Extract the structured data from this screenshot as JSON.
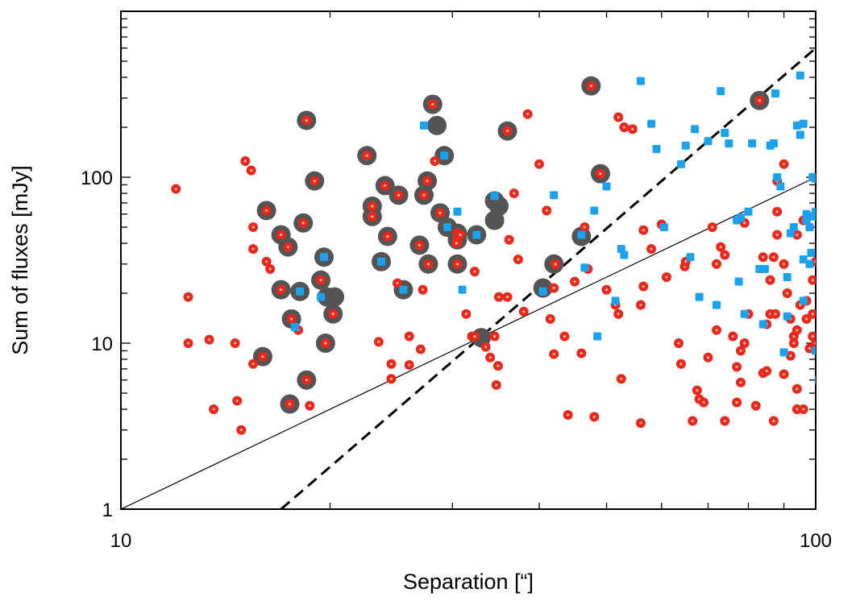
{
  "chart_data": {
    "type": "scatter",
    "xscale": "log",
    "yscale": "log",
    "xlim": [
      10,
      100
    ],
    "ylim": [
      1,
      1000
    ],
    "xlabel": "Separation [“]",
    "ylabel": "Sum of fluxes [mJy]",
    "x_tick_labels": [
      {
        "value": 10,
        "label": "10"
      },
      {
        "value": 100,
        "label": "100"
      }
    ],
    "y_tick_labels": [
      {
        "value": 1,
        "label": "1"
      },
      {
        "value": 10,
        "label": "10"
      },
      {
        "value": 100,
        "label": "100"
      }
    ],
    "colors": {
      "red": "#e8281a",
      "blue": "#1aa3ec",
      "ring": "#545454",
      "solid_line": "#000000",
      "dashed_line": "#000000"
    },
    "lines": [
      {
        "name": "solid-line",
        "style": "solid",
        "x": [
          10,
          100
        ],
        "y": [
          1,
          100
        ]
      },
      {
        "name": "dashed-line",
        "style": "dashed",
        "x": [
          17,
          100
        ],
        "y": [
          1,
          600
        ]
      }
    ],
    "series": [
      {
        "name": "circled-sources",
        "marker": "dark-ring",
        "points": [
          [
            18.5,
            220
          ],
          [
            28.1,
            275
          ],
          [
            28.5,
            205
          ],
          [
            47.5,
            355
          ],
          [
            83,
            290
          ],
          [
            16.2,
            63
          ],
          [
            17,
            45
          ],
          [
            17.4,
            38
          ],
          [
            18.3,
            53
          ],
          [
            19,
            95
          ],
          [
            19.6,
            33
          ],
          [
            19.4,
            24
          ],
          [
            19.8,
            19
          ],
          [
            20.3,
            19
          ],
          [
            20.2,
            15
          ],
          [
            17,
            21
          ],
          [
            17.6,
            14
          ],
          [
            18.1,
            20.5
          ],
          [
            19.7,
            10
          ],
          [
            16,
            8.3
          ],
          [
            17.5,
            4.3
          ],
          [
            18.5,
            6
          ],
          [
            22.6,
            135
          ],
          [
            23,
            67
          ],
          [
            23,
            58
          ],
          [
            24,
            89
          ],
          [
            24.2,
            44
          ],
          [
            25.1,
            78
          ],
          [
            23.7,
            31
          ],
          [
            25.5,
            21
          ],
          [
            27.3,
            78
          ],
          [
            27.6,
            95
          ],
          [
            26.9,
            39
          ],
          [
            27.7,
            30
          ],
          [
            28.8,
            61
          ],
          [
            29.5,
            50
          ],
          [
            30.5,
            46
          ],
          [
            30.5,
            30
          ],
          [
            30.5,
            42
          ],
          [
            32.5,
            45
          ],
          [
            34.5,
            72
          ],
          [
            35,
            67
          ],
          [
            34.5,
            55
          ],
          [
            36,
            190
          ],
          [
            42,
            30
          ],
          [
            40.5,
            21.5
          ],
          [
            46,
            44
          ],
          [
            49,
            105
          ],
          [
            33,
            10.8
          ],
          [
            29.2,
            135
          ]
        ]
      },
      {
        "name": "red-sources",
        "marker": "red-dot",
        "points": [
          [
            12,
            85
          ],
          [
            12.5,
            19
          ],
          [
            12.5,
            10
          ],
          [
            13.4,
            10.5
          ],
          [
            13.6,
            4
          ],
          [
            14.6,
            10
          ],
          [
            14.7,
            4.5
          ],
          [
            14.9,
            3
          ],
          [
            15.1,
            125
          ],
          [
            15.4,
            110
          ],
          [
            15.5,
            50
          ],
          [
            15.5,
            37
          ],
          [
            15.5,
            7.5
          ],
          [
            16.2,
            31
          ],
          [
            16.4,
            28
          ],
          [
            18,
            12
          ],
          [
            18.7,
            4.2
          ],
          [
            19,
            95
          ],
          [
            16.2,
            63
          ],
          [
            17,
            45
          ],
          [
            17.4,
            38
          ],
          [
            18.3,
            53
          ],
          [
            19.4,
            24
          ],
          [
            20.2,
            15
          ],
          [
            17,
            21
          ],
          [
            17.6,
            14
          ],
          [
            19.7,
            10
          ],
          [
            16,
            8.3
          ],
          [
            17.5,
            4.3
          ],
          [
            18.5,
            6
          ],
          [
            18.5,
            220
          ],
          [
            23.5,
            10.2
          ],
          [
            24.2,
            44
          ],
          [
            24.5,
            7.5
          ],
          [
            24.5,
            6.1
          ],
          [
            25,
            23
          ],
          [
            26,
            11
          ],
          [
            26,
            7.4
          ],
          [
            27,
            9.2
          ],
          [
            27.2,
            21
          ],
          [
            28.1,
            275
          ],
          [
            28.3,
            125
          ],
          [
            22.6,
            135
          ],
          [
            23,
            67
          ],
          [
            23,
            58
          ],
          [
            24,
            89
          ],
          [
            25.1,
            78
          ],
          [
            27.3,
            78
          ],
          [
            27.6,
            95
          ],
          [
            26.9,
            39
          ],
          [
            27.7,
            30
          ],
          [
            28.8,
            61
          ],
          [
            30.5,
            46
          ],
          [
            30.5,
            30
          ],
          [
            30.5,
            42
          ],
          [
            30.4,
            40
          ],
          [
            30.8,
            45
          ],
          [
            31.4,
            15
          ],
          [
            32,
            11
          ],
          [
            32.3,
            11
          ],
          [
            32.3,
            27
          ],
          [
            33.5,
            9.5
          ],
          [
            34,
            8.2
          ],
          [
            34.5,
            11
          ],
          [
            34.9,
            7.3
          ],
          [
            35,
            19
          ],
          [
            34.7,
            5.6
          ],
          [
            36,
            19
          ],
          [
            36.2,
            42
          ],
          [
            36.8,
            80
          ],
          [
            37.3,
            32
          ],
          [
            38,
            15.5
          ],
          [
            36,
            190
          ],
          [
            38.5,
            240
          ],
          [
            40,
            120
          ],
          [
            41,
            63
          ],
          [
            41.5,
            14
          ],
          [
            42,
            8.6
          ],
          [
            42.2,
            30
          ],
          [
            42,
            21.5
          ],
          [
            43.5,
            11
          ],
          [
            44,
            3.7
          ],
          [
            45,
            23.5
          ],
          [
            46,
            8.7
          ],
          [
            46.5,
            50
          ],
          [
            47,
            28
          ],
          [
            47.5,
            355
          ],
          [
            49,
            105
          ],
          [
            48,
            3.6
          ],
          [
            50,
            21
          ],
          [
            51.5,
            17
          ],
          [
            52,
            15
          ],
          [
            52,
            230
          ],
          [
            52.5,
            6.1
          ],
          [
            53,
            200
          ],
          [
            54.5,
            195
          ],
          [
            56,
            3.3
          ],
          [
            56,
            17
          ],
          [
            56.5,
            48
          ],
          [
            56.5,
            22
          ],
          [
            58,
            37
          ],
          [
            60,
            52
          ],
          [
            61,
            25
          ],
          [
            63.5,
            10
          ],
          [
            64,
            7.5
          ],
          [
            64.8,
            29
          ],
          [
            65,
            31
          ],
          [
            66.5,
            3.4
          ],
          [
            67.5,
            5.2
          ],
          [
            68,
            4.6
          ],
          [
            69,
            4.4
          ],
          [
            70,
            8.2
          ],
          [
            71,
            50
          ],
          [
            72,
            12
          ],
          [
            72,
            30
          ],
          [
            73,
            38
          ],
          [
            74,
            34
          ],
          [
            74,
            3.4
          ],
          [
            76,
            11
          ],
          [
            77,
            7.2
          ],
          [
            77,
            4.4
          ],
          [
            78,
            9
          ],
          [
            78,
            5.8
          ],
          [
            79,
            10
          ],
          [
            79,
            53
          ],
          [
            80,
            15
          ],
          [
            82,
            4.2
          ],
          [
            83,
            290
          ],
          [
            84,
            6.6
          ],
          [
            84,
            33
          ],
          [
            85,
            13
          ],
          [
            85,
            6.8
          ],
          [
            86,
            15
          ],
          [
            86,
            24
          ],
          [
            87,
            3.4
          ],
          [
            87,
            33
          ],
          [
            87.5,
            15
          ],
          [
            88,
            95
          ],
          [
            88,
            45
          ],
          [
            88,
            62
          ],
          [
            90,
            120
          ],
          [
            90,
            30
          ],
          [
            90,
            6.5
          ],
          [
            91,
            20
          ],
          [
            92,
            14
          ],
          [
            92,
            8.4
          ],
          [
            93,
            11
          ],
          [
            93,
            10
          ],
          [
            94,
            12
          ],
          [
            94,
            45
          ],
          [
            94,
            5.3
          ],
          [
            94,
            4
          ],
          [
            95,
            17
          ],
          [
            96,
            4
          ],
          [
            96,
            55
          ],
          [
            97,
            18
          ],
          [
            97,
            14
          ],
          [
            98,
            9.3
          ],
          [
            99,
            24
          ],
          [
            99,
            15
          ],
          [
            99,
            11
          ],
          [
            100,
            31
          ],
          [
            100,
            10
          ],
          [
            100,
            60
          ]
        ]
      },
      {
        "name": "blue-sources",
        "marker": "blue-square",
        "points": [
          [
            27.3,
            205
          ],
          [
            29.2,
            135
          ],
          [
            23.7,
            31
          ],
          [
            25.5,
            21
          ],
          [
            19.6,
            33
          ],
          [
            18.1,
            20.5
          ],
          [
            19.4,
            19
          ],
          [
            17.8,
            12.5
          ],
          [
            29.5,
            50
          ],
          [
            30.5,
            62
          ],
          [
            31,
            21
          ],
          [
            32.5,
            45
          ],
          [
            34.5,
            77
          ],
          [
            40.5,
            20.5
          ],
          [
            42,
            78
          ],
          [
            46,
            45
          ],
          [
            46.5,
            28.5
          ],
          [
            48,
            63
          ],
          [
            48.5,
            11
          ],
          [
            50,
            88
          ],
          [
            51.5,
            18
          ],
          [
            52.5,
            37
          ],
          [
            53,
            34
          ],
          [
            56,
            380
          ],
          [
            58,
            210
          ],
          [
            59,
            148
          ],
          [
            60.5,
            50
          ],
          [
            64,
            120
          ],
          [
            65,
            155
          ],
          [
            66,
            33
          ],
          [
            67,
            195
          ],
          [
            68,
            19
          ],
          [
            70,
            165
          ],
          [
            72,
            17
          ],
          [
            73,
            330
          ],
          [
            74,
            185
          ],
          [
            75,
            160
          ],
          [
            77,
            55
          ],
          [
            77.5,
            23.5
          ],
          [
            78,
            57
          ],
          [
            79,
            15
          ],
          [
            80,
            62
          ],
          [
            81,
            160
          ],
          [
            83,
            28
          ],
          [
            84,
            13
          ],
          [
            84.5,
            28
          ],
          [
            86,
            155
          ],
          [
            87,
            160
          ],
          [
            87.5,
            320
          ],
          [
            88,
            100
          ],
          [
            89,
            88
          ],
          [
            90,
            8.8
          ],
          [
            91,
            25
          ],
          [
            91,
            14.5
          ],
          [
            92,
            46
          ],
          [
            93,
            50
          ],
          [
            94,
            205
          ],
          [
            95,
            180
          ],
          [
            95,
            410
          ],
          [
            96,
            210
          ],
          [
            96,
            32
          ],
          [
            96,
            18
          ],
          [
            97,
            55
          ],
          [
            97,
            60
          ],
          [
            98,
            50
          ],
          [
            98,
            30
          ],
          [
            98.5,
            35
          ],
          [
            99,
            58
          ],
          [
            99,
            100
          ],
          [
            100,
            98
          ],
          [
            100,
            62
          ],
          [
            100,
            9
          ],
          [
            101,
            6
          ]
        ]
      }
    ]
  }
}
